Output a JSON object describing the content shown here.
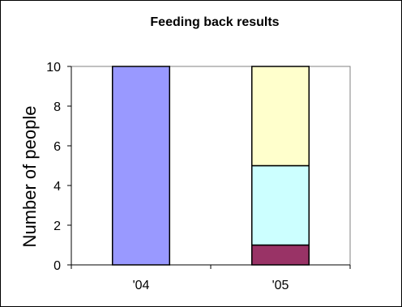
{
  "chart_data": {
    "type": "bar",
    "stacked": true,
    "title": "Feeding back results",
    "xlabel": "",
    "ylabel": "Number of people",
    "ylim": [
      0,
      10
    ],
    "yticks": [
      0,
      2,
      4,
      6,
      8,
      10
    ],
    "categories": [
      "'04",
      "'05"
    ],
    "grid": false,
    "legend": "none",
    "series": [
      {
        "color": "#9999ff",
        "values": [
          10,
          0
        ]
      },
      {
        "color": "#993366",
        "values": [
          0,
          1
        ]
      },
      {
        "color": "#ccffff",
        "values": [
          0,
          4
        ]
      },
      {
        "color": "#ffffcc",
        "values": [
          0,
          5
        ]
      }
    ]
  }
}
